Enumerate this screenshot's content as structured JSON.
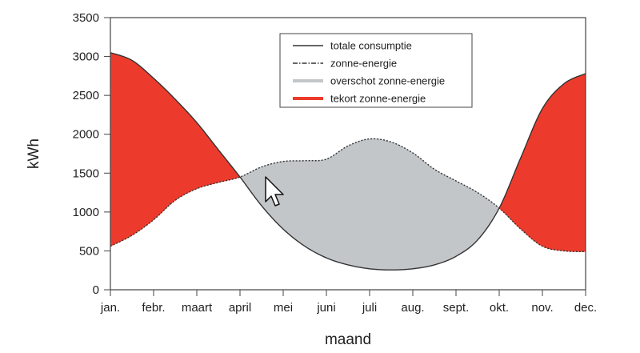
{
  "chart_data": {
    "type": "line",
    "title": "",
    "xlabel": "maand",
    "ylabel": "kWh",
    "ylim": [
      0,
      3500
    ],
    "yticks": [
      0,
      500,
      1000,
      1500,
      2000,
      2500,
      3000,
      3500
    ],
    "categories": [
      "jan.",
      "febr.",
      "maart",
      "april",
      "mei",
      "juni",
      "juli",
      "aug.",
      "sept.",
      "okt.",
      "nov.",
      "dec."
    ],
    "x": [
      0,
      0.5,
      1,
      1.5,
      2,
      2.5,
      3,
      3.5,
      4,
      4.5,
      5,
      5.5,
      6,
      6.5,
      7,
      7.5,
      8,
      8.5,
      9,
      9.5,
      10,
      10.5,
      11
    ],
    "series": [
      {
        "name": "totale consumptie",
        "style": "solid",
        "values": [
          3050,
          2950,
          2720,
          2450,
          2150,
          1800,
          1450,
          1080,
          780,
          560,
          410,
          320,
          270,
          255,
          270,
          320,
          430,
          640,
          1050,
          1700,
          2330,
          2650,
          2780
        ]
      },
      {
        "name": "zonne-energie",
        "style": "dash-dot",
        "values": [
          560,
          700,
          900,
          1150,
          1300,
          1380,
          1450,
          1580,
          1650,
          1660,
          1680,
          1850,
          1940,
          1900,
          1760,
          1550,
          1400,
          1250,
          1050,
          780,
          560,
          500,
          490
        ]
      }
    ],
    "fills": [
      {
        "name": "overschot zonne-energie",
        "color": "#c3c6c9"
      },
      {
        "name": "tekort zonne-energie",
        "color": "#ec3b2c"
      }
    ],
    "legend_position": "top-center",
    "grid": false
  }
}
